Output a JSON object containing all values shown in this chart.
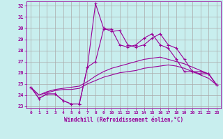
{
  "xlabel": "Windchill (Refroidissement éolien,°C)",
  "bg_color": "#c8eeee",
  "line_color": "#990099",
  "grid_color": "#aaaaaa",
  "xlim_min": -0.5,
  "xlim_max": 23.5,
  "ylim_min": 22.8,
  "ylim_max": 32.4,
  "yticks": [
    23,
    24,
    25,
    26,
    27,
    28,
    29,
    30,
    31,
    32
  ],
  "xticks": [
    0,
    1,
    2,
    3,
    4,
    5,
    6,
    7,
    8,
    9,
    10,
    11,
    12,
    13,
    14,
    15,
    16,
    17,
    18,
    19,
    20,
    21,
    22,
    23
  ],
  "series_marked1": [
    24.7,
    23.7,
    24.1,
    24.1,
    23.5,
    23.2,
    23.2,
    26.5,
    32.2,
    30.0,
    29.7,
    29.8,
    28.5,
    28.3,
    28.5,
    29.1,
    29.5,
    28.5,
    28.2,
    27.2,
    26.1,
    26.1,
    25.9,
    24.9
  ],
  "series_marked2": [
    24.7,
    23.7,
    24.1,
    24.1,
    23.5,
    23.2,
    23.2,
    26.5,
    27.0,
    29.9,
    29.9,
    28.5,
    28.3,
    28.5,
    29.1,
    29.5,
    28.5,
    28.2,
    27.2,
    26.1,
    26.1,
    25.9,
    25.9,
    24.9
  ],
  "series_plain1": [
    24.7,
    24.0,
    24.3,
    24.5,
    24.6,
    24.7,
    24.8,
    25.2,
    25.7,
    26.1,
    26.4,
    26.6,
    26.8,
    27.0,
    27.2,
    27.3,
    27.4,
    27.2,
    27.0,
    26.8,
    26.5,
    26.2,
    25.9,
    24.9
  ],
  "series_plain2": [
    24.7,
    24.0,
    24.2,
    24.4,
    24.5,
    24.5,
    24.6,
    25.0,
    25.3,
    25.6,
    25.8,
    26.0,
    26.1,
    26.2,
    26.4,
    26.5,
    26.6,
    26.7,
    26.6,
    26.4,
    26.1,
    25.8,
    25.5,
    24.9
  ]
}
